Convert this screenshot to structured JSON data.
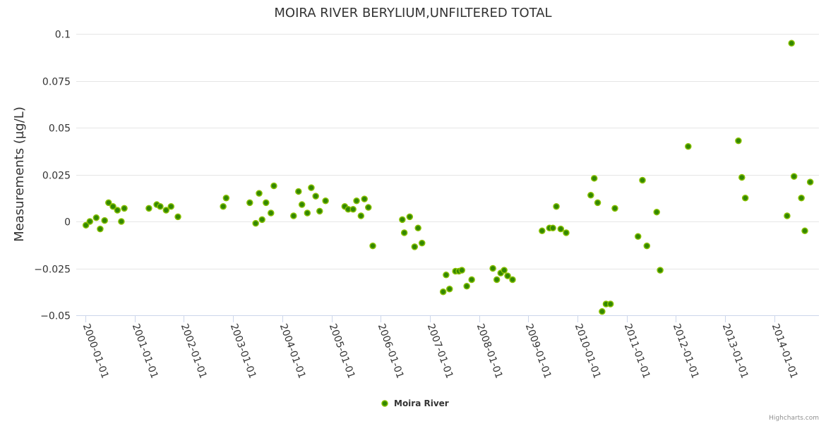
{
  "chart_data": {
    "type": "scatter",
    "title": "MOIRA RIVER BERYLIUM,UNFILTERED TOTAL",
    "xlabel": "",
    "ylabel": "Measurements (µg/L)",
    "x_unit": "decimal year",
    "ylim": [
      -0.05,
      0.1
    ],
    "yticks": [
      -0.05,
      -0.025,
      0,
      0.025,
      0.05,
      0.075,
      0.1
    ],
    "ytick_labels": [
      "−0.05",
      "−0.025",
      "0",
      "0.025",
      "0.05",
      "0.075",
      "0.1"
    ],
    "xticks": [
      2000,
      2001,
      2002,
      2003,
      2004,
      2005,
      2006,
      2007,
      2008,
      2009,
      2010,
      2011,
      2012,
      2013,
      2014
    ],
    "xtick_labels": [
      "2000-01-01",
      "2001-01-01",
      "2002-01-01",
      "2003-01-01",
      "2004-01-01",
      "2005-01-01",
      "2006-01-01",
      "2007-01-01",
      "2008-01-01",
      "2009-01-01",
      "2010-01-01",
      "2011-01-01",
      "2012-01-01",
      "2013-01-01",
      "2014-01-01"
    ],
    "grid": true,
    "legend": {
      "position": "bottom-center",
      "entries": [
        "Moira River"
      ]
    },
    "series": [
      {
        "name": "Moira River",
        "color": "#6aaa00",
        "points": [
          [
            2000.01,
            -0.002
          ],
          [
            2000.09,
            0
          ],
          [
            2000.22,
            0.002
          ],
          [
            2000.3,
            -0.004
          ],
          [
            2000.39,
            0.0005
          ],
          [
            2000.47,
            0.01
          ],
          [
            2000.56,
            0.008
          ],
          [
            2000.65,
            0.006
          ],
          [
            2000.73,
            0
          ],
          [
            2000.79,
            0.007
          ],
          [
            2001.29,
            0.007
          ],
          [
            2001.45,
            0.009
          ],
          [
            2001.52,
            0.008
          ],
          [
            2001.64,
            0.006
          ],
          [
            2001.74,
            0.008
          ],
          [
            2001.88,
            0.0025
          ],
          [
            2002.8,
            0.008
          ],
          [
            2002.86,
            0.0125
          ],
          [
            2003.34,
            0.01
          ],
          [
            2003.46,
            -0.001
          ],
          [
            2003.53,
            0.015
          ],
          [
            2003.59,
            0.001
          ],
          [
            2003.67,
            0.01
          ],
          [
            2003.77,
            0.0045
          ],
          [
            2003.83,
            0.019
          ],
          [
            2004.23,
            0.003
          ],
          [
            2004.33,
            0.016
          ],
          [
            2004.4,
            0.009
          ],
          [
            2004.51,
            0.0045
          ],
          [
            2004.59,
            0.018
          ],
          [
            2004.68,
            0.0135
          ],
          [
            2004.76,
            0.0055
          ],
          [
            2004.88,
            0.011
          ],
          [
            2005.27,
            0.008
          ],
          [
            2005.34,
            0.0065
          ],
          [
            2005.44,
            0.0065
          ],
          [
            2005.51,
            0.011
          ],
          [
            2005.6,
            0.003
          ],
          [
            2005.67,
            0.012
          ],
          [
            2005.75,
            0.0075
          ],
          [
            2005.84,
            -0.013
          ],
          [
            2006.44,
            0.001
          ],
          [
            2006.48,
            -0.006
          ],
          [
            2006.59,
            0.0025
          ],
          [
            2006.69,
            -0.0135
          ],
          [
            2006.76,
            -0.0035
          ],
          [
            2006.84,
            -0.0115
          ],
          [
            2007.27,
            -0.0375
          ],
          [
            2007.33,
            -0.0285
          ],
          [
            2007.4,
            -0.036
          ],
          [
            2007.52,
            -0.0265
          ],
          [
            2007.59,
            -0.0265
          ],
          [
            2007.65,
            -0.026
          ],
          [
            2007.75,
            -0.0345
          ],
          [
            2007.85,
            -0.031
          ],
          [
            2008.28,
            -0.025
          ],
          [
            2008.36,
            -0.031
          ],
          [
            2008.44,
            -0.0275
          ],
          [
            2008.51,
            -0.026
          ],
          [
            2008.58,
            -0.029
          ],
          [
            2008.68,
            -0.031
          ],
          [
            2009.28,
            -0.005
          ],
          [
            2009.43,
            -0.0035
          ],
          [
            2009.5,
            -0.0035
          ],
          [
            2009.57,
            0.008
          ],
          [
            2009.66,
            -0.004
          ],
          [
            2009.77,
            -0.006
          ],
          [
            2010.27,
            0.014
          ],
          [
            2010.34,
            0.023
          ],
          [
            2010.41,
            0.01
          ],
          [
            2010.5,
            -0.048
          ],
          [
            2010.58,
            -0.044
          ],
          [
            2010.67,
            -0.044
          ],
          [
            2010.76,
            0.007
          ],
          [
            2011.23,
            -0.008
          ],
          [
            2011.32,
            0.022
          ],
          [
            2011.41,
            -0.013
          ],
          [
            2011.61,
            0.005
          ],
          [
            2011.68,
            -0.026
          ],
          [
            2012.25,
            0.04
          ],
          [
            2013.27,
            0.043
          ],
          [
            2013.34,
            0.0235
          ],
          [
            2013.41,
            0.0125
          ],
          [
            2014.26,
            0.003
          ],
          [
            2014.35,
            0.095
          ],
          [
            2014.4,
            0.024
          ],
          [
            2014.55,
            0.0125
          ],
          [
            2014.62,
            -0.005
          ],
          [
            2014.73,
            0.021
          ]
        ]
      }
    ],
    "credits": "Highcharts.com"
  }
}
